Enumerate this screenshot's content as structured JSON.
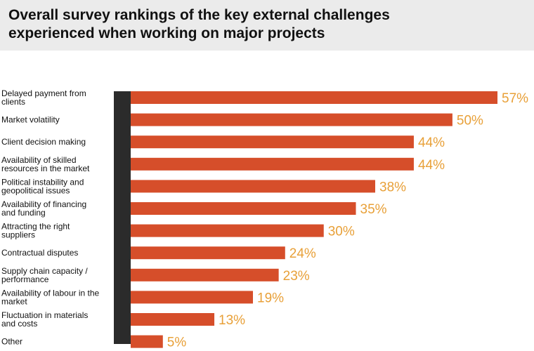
{
  "header": {
    "title_line1": "Overall survey rankings of the key external challenges",
    "title_line2": "experienced when working on major projects"
  },
  "colors": {
    "bar": "#d64e2a",
    "value_label": "#e8a038",
    "axis_bar": "#2b2b2b",
    "title_band": "#ebebeb"
  },
  "chart_data": {
    "type": "bar",
    "orientation": "horizontal",
    "title": "Overall survey rankings of the key external challenges experienced when working on major projects",
    "xlim": [
      0,
      57
    ],
    "grid": false,
    "legend": "none",
    "categories": [
      "Delayed payment from clients",
      "Market volatility",
      "Client decision making",
      "Availability of skilled resources in the market",
      "Political instability and geopolitical issues",
      "Availability of financing and funding",
      "Attracting the right suppliers",
      "Contractual disputes",
      "Supply chain capacity / performance",
      "Availability of labour in the market",
      "Fluctuation in materials and costs",
      "Other"
    ],
    "label_lines": [
      [
        "Delayed payment from",
        "clients"
      ],
      [
        "Market volatility"
      ],
      [
        "Client decision making"
      ],
      [
        "Availability of skilled",
        "resources in the market"
      ],
      [
        "Political instability and",
        "geopolitical issues"
      ],
      [
        "Availability of financing",
        "and funding"
      ],
      [
        "Attracting the right",
        "suppliers"
      ],
      [
        "Contractual disputes"
      ],
      [
        "Supply chain capacity /",
        "performance"
      ],
      [
        "Availability of labour in the",
        "market"
      ],
      [
        "Fluctuation in materials",
        "and costs"
      ],
      [
        "Other"
      ]
    ],
    "values": [
      57,
      50,
      44,
      44,
      38,
      35,
      30,
      24,
      23,
      19,
      13,
      5
    ],
    "value_labels": [
      "57%",
      "50%",
      "44%",
      "44%",
      "38%",
      "35%",
      "30%",
      "24%",
      "23%",
      "19%",
      "13%",
      "5%"
    ]
  }
}
